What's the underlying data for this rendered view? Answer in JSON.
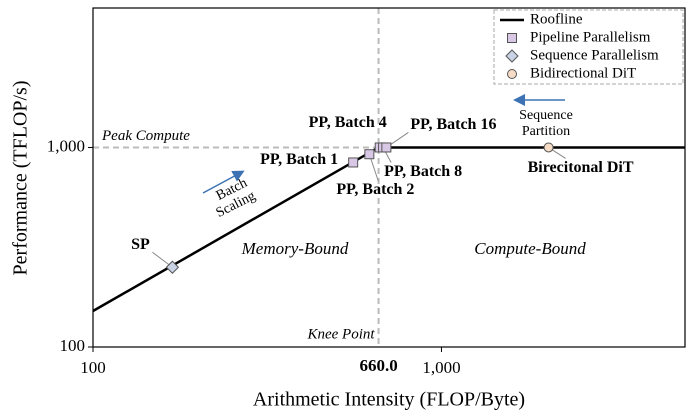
{
  "chart_data": {
    "type": "scatter",
    "xlabel": "Arithmetic Intensity (FLOP/Byte)",
    "ylabel": "Performance (TFLOP/s)",
    "xscale": "log",
    "yscale": "log",
    "xlim": [
      100,
      5000
    ],
    "ylim": [
      100,
      5000
    ],
    "xticks": [
      100,
      {
        "value": 1000,
        "label": "1,000"
      }
    ],
    "yticks": [
      100,
      {
        "value": 1000,
        "label": "1,000"
      }
    ],
    "legend": "upper right",
    "peak": {
      "value": 1000,
      "label": "Peak Compute"
    },
    "knee": {
      "value": 660,
      "label": "Knee Point",
      "value_label": "660.0"
    },
    "regions": [
      "Memory-Bound",
      "Compute-Bound"
    ],
    "annotations": [
      {
        "lines": [
          "Batch",
          "Scaling"
        ],
        "color": "#3d72b4"
      },
      {
        "lines": [
          "Sequence",
          "Partition"
        ],
        "color": "#3d72b4"
      }
    ],
    "series": [
      {
        "name": "Roofline",
        "type": "line",
        "color": "#000000",
        "x": [
          100,
          660,
          5000
        ],
        "values": [
          151.5,
          1000,
          1000
        ]
      },
      {
        "name": "Pipeline Parallelism",
        "type": "scatter",
        "marker": "square",
        "color": "#d8c8e6",
        "x": [
          558,
          621,
          665,
          680,
          695
        ],
        "values": [
          841,
          925,
          1000,
          1000,
          1000
        ],
        "labels": [
          "PP, Batch 1",
          "PP, Batch 2",
          "PP, Batch 4",
          "PP, Batch 8",
          "PP, Batch 16"
        ]
      },
      {
        "name": "Sequence Parallelism",
        "type": "scatter",
        "marker": "diamond",
        "color": "#c9d3e6",
        "x": [
          169
        ],
        "values": [
          251
        ],
        "labels": [
          "SP"
        ]
      },
      {
        "name": "Bidirectional DiT",
        "type": "scatter",
        "marker": "circle",
        "color": "#f6dcc6",
        "x": [
          2030
        ],
        "values": [
          1000
        ],
        "labels": [
          "Birecitonal DiT"
        ]
      }
    ]
  }
}
